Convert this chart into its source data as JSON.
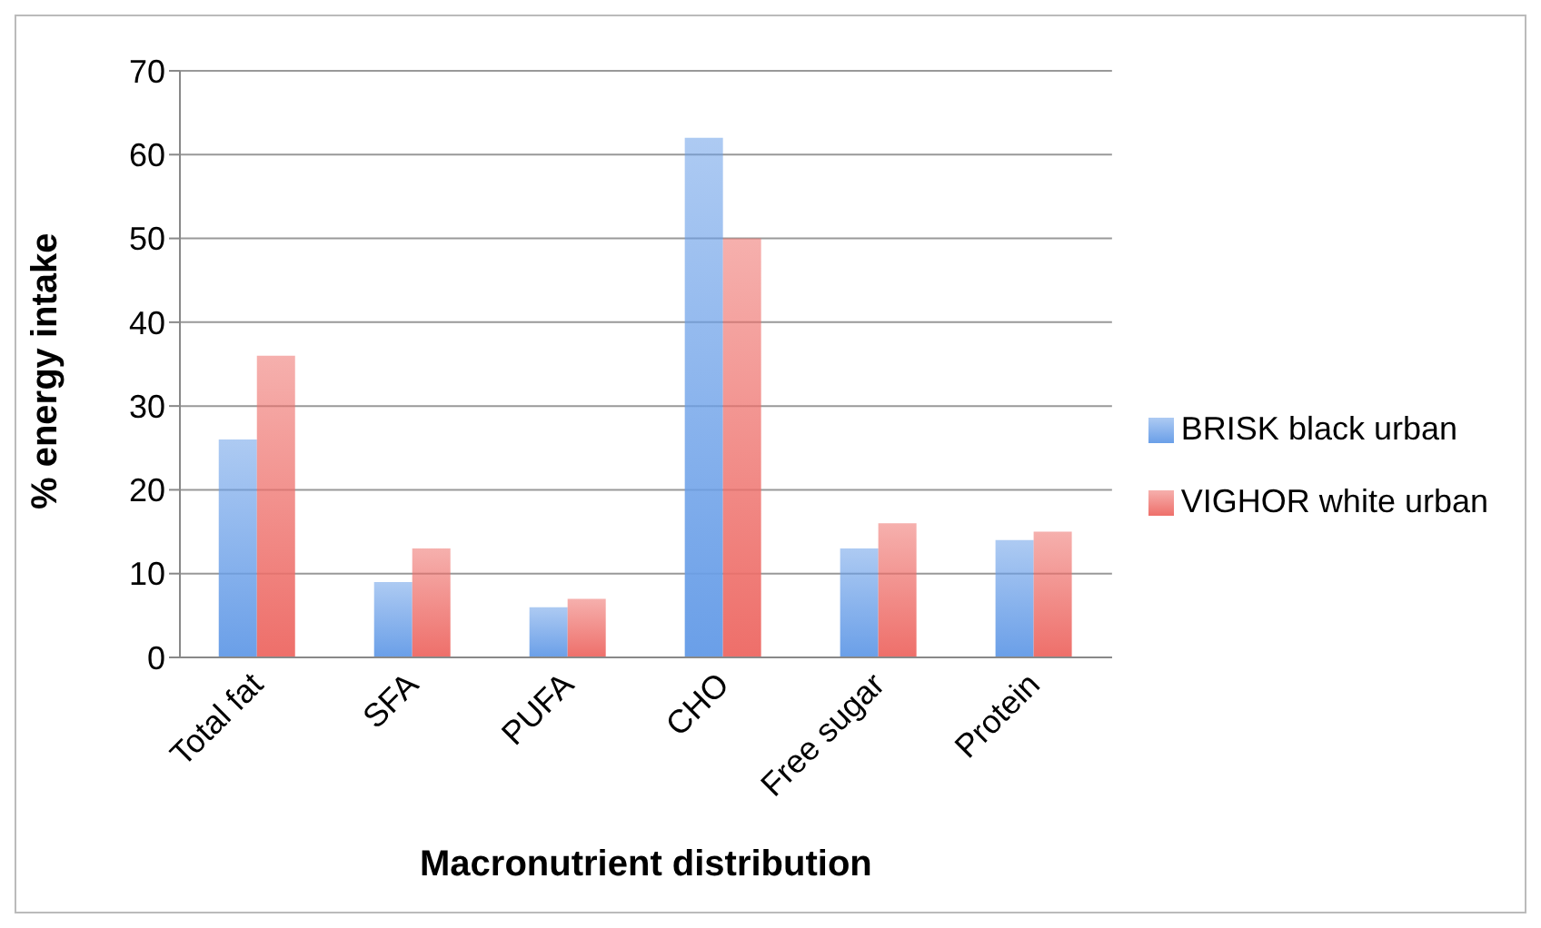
{
  "chart_data": {
    "type": "bar",
    "xlabel": "Macronutrient distribution",
    "ylabel": "% energy intake",
    "categories": [
      "Total fat",
      "SFA",
      "PUFA",
      "CHO",
      "Free sugar",
      "Protein"
    ],
    "series": [
      {
        "name": "BRISK black urban",
        "color": "#6a9fe8",
        "values": [
          26,
          9,
          6,
          62,
          13,
          14
        ]
      },
      {
        "name": "VIGHOR white urban",
        "color": "#ee6f6a",
        "values": [
          36,
          13,
          7,
          50,
          16,
          15
        ]
      }
    ],
    "ylim": [
      0,
      70
    ],
    "yticks": [
      0,
      10,
      20,
      30,
      40,
      50,
      60,
      70
    ],
    "grid": "y",
    "legend": "right"
  }
}
